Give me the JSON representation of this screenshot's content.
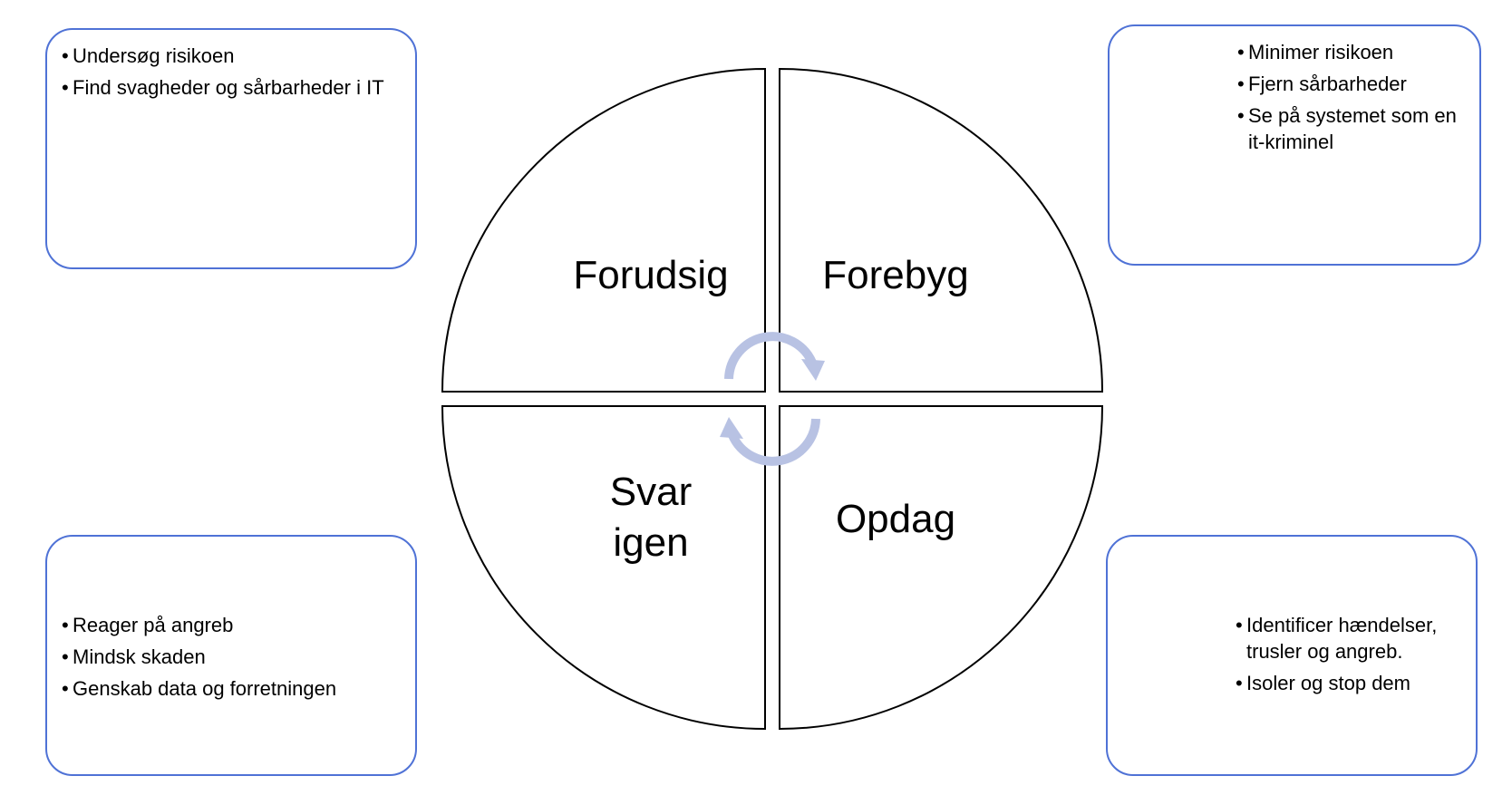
{
  "colors": {
    "box_border": "#4f72d6",
    "quadrant_stroke": "#000000",
    "cycle_arrow": "#b8c2e3"
  },
  "bullet_char": "•",
  "quadrants": {
    "top_left": "Forudsig",
    "top_right": "Forebyg",
    "bottom_left": [
      "Svar",
      "igen"
    ],
    "bottom_right": "Opdag"
  },
  "boxes": {
    "top_left": [
      "Undersøg risikoen",
      "Find svagheder og sårbarheder i IT"
    ],
    "top_right": [
      "Minimer risikoen",
      "Fjern sårbarheder",
      "Se på systemet som en it-kriminel"
    ],
    "bottom_left": [
      "Reager på angreb",
      "Mindsk skaden",
      "Genskab data og forretningen"
    ],
    "bottom_right": [
      "Identificer hændelser, trusler og angreb.",
      "Isoler og stop dem"
    ]
  },
  "icons": {
    "cycle": "cycle-arrows-icon"
  }
}
